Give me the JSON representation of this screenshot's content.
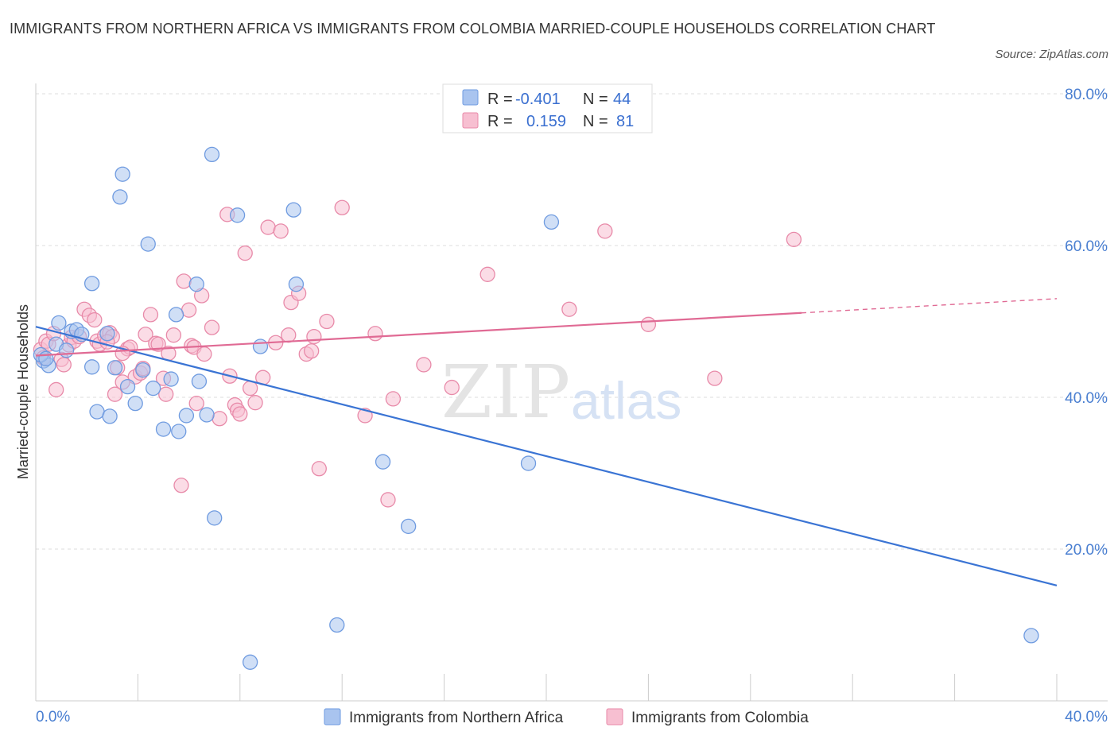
{
  "header": {
    "title": "IMMIGRANTS FROM NORTHERN AFRICA VS IMMIGRANTS FROM COLOMBIA MARRIED-COUPLE HOUSEHOLDS CORRELATION CHART",
    "source": "Source: ZipAtlas.com"
  },
  "chart_data": {
    "type": "scatter",
    "title": "IMMIGRANTS FROM NORTHERN AFRICA VS IMMIGRANTS FROM COLOMBIA MARRIED-COUPLE HOUSEHOLDS CORRELATION CHART",
    "ylabel": "Married-couple Households",
    "xlabel": "",
    "xlim": [
      0,
      40
    ],
    "ylim": [
      0,
      80
    ],
    "y_ticks": [
      {
        "value": 80,
        "label": "80.0%"
      },
      {
        "value": 60,
        "label": "60.0%"
      },
      {
        "value": 40,
        "label": "40.0%"
      },
      {
        "value": 20,
        "label": "20.0%"
      }
    ],
    "x_tick_labels": {
      "min": "0.0%",
      "max": "40.0%"
    },
    "grid": true,
    "legend_position": "top-center",
    "watermark": "ZIPatlas",
    "series": [
      {
        "name": "Immigrants from Northern Africa",
        "color": "#a9c4ef",
        "stroke": "#6f9be0",
        "line_color": "#3a74d4",
        "R": "-0.401",
        "N": "44",
        "trend": {
          "x0": 0,
          "y0": 49.3,
          "x1": 40,
          "y1": 15.2,
          "solid_until": 40
        },
        "points": [
          [
            0.3,
            44.8
          ],
          [
            0.5,
            44.2
          ],
          [
            0.2,
            45.6
          ],
          [
            0.4,
            45.1
          ],
          [
            0.8,
            47.0
          ],
          [
            0.9,
            49.8
          ],
          [
            1.2,
            46.2
          ],
          [
            1.4,
            48.7
          ],
          [
            1.6,
            48.9
          ],
          [
            1.8,
            48.3
          ],
          [
            2.2,
            55.0
          ],
          [
            2.2,
            44.0
          ],
          [
            2.4,
            38.1
          ],
          [
            2.9,
            37.5
          ],
          [
            2.8,
            48.4
          ],
          [
            3.1,
            43.9
          ],
          [
            3.3,
            66.4
          ],
          [
            3.4,
            69.4
          ],
          [
            3.6,
            41.4
          ],
          [
            3.9,
            39.2
          ],
          [
            4.2,
            43.6
          ],
          [
            4.4,
            60.2
          ],
          [
            4.6,
            41.2
          ],
          [
            5.0,
            35.8
          ],
          [
            5.3,
            42.4
          ],
          [
            5.6,
            35.5
          ],
          [
            5.5,
            50.9
          ],
          [
            5.9,
            37.6
          ],
          [
            6.3,
            54.9
          ],
          [
            6.4,
            42.1
          ],
          [
            6.7,
            37.7
          ],
          [
            6.9,
            72.0
          ],
          [
            7.0,
            24.1
          ],
          [
            7.9,
            64.0
          ],
          [
            8.4,
            5.1
          ],
          [
            8.8,
            46.7
          ],
          [
            10.1,
            64.7
          ],
          [
            10.2,
            54.9
          ],
          [
            11.8,
            10.0
          ],
          [
            13.6,
            31.5
          ],
          [
            14.6,
            23.0
          ],
          [
            19.3,
            31.3
          ],
          [
            20.2,
            63.1
          ],
          [
            39.0,
            8.6
          ]
        ]
      },
      {
        "name": "Immigrants from Colombia",
        "color": "#f7bfd1",
        "stroke": "#e88aa9",
        "line_color": "#e06a94",
        "R": "0.159",
        "N": "81",
        "trend": {
          "x0": 0,
          "y0": 45.5,
          "x1": 40,
          "y1": 53.0,
          "solid_until": 30
        },
        "points": [
          [
            0.2,
            46.3
          ],
          [
            0.3,
            45.2
          ],
          [
            0.4,
            47.4
          ],
          [
            0.5,
            47.0
          ],
          [
            0.7,
            48.4
          ],
          [
            0.8,
            41.0
          ],
          [
            1.0,
            45.0
          ],
          [
            1.1,
            44.3
          ],
          [
            1.3,
            46.9
          ],
          [
            1.4,
            47.9
          ],
          [
            1.5,
            47.4
          ],
          [
            1.7,
            48.0
          ],
          [
            1.9,
            51.6
          ],
          [
            2.1,
            50.8
          ],
          [
            2.3,
            50.2
          ],
          [
            2.4,
            47.4
          ],
          [
            2.5,
            47.0
          ],
          [
            2.7,
            48.1
          ],
          [
            2.9,
            48.5
          ],
          [
            3.0,
            48.0
          ],
          [
            3.1,
            40.4
          ],
          [
            3.2,
            43.9
          ],
          [
            3.4,
            42.0
          ],
          [
            3.6,
            46.4
          ],
          [
            3.7,
            46.6
          ],
          [
            3.9,
            42.7
          ],
          [
            4.1,
            43.2
          ],
          [
            4.2,
            43.8
          ],
          [
            4.3,
            48.3
          ],
          [
            4.5,
            50.9
          ],
          [
            4.7,
            47.1
          ],
          [
            4.8,
            47.0
          ],
          [
            5.0,
            42.5
          ],
          [
            5.1,
            40.4
          ],
          [
            5.2,
            45.8
          ],
          [
            5.4,
            48.2
          ],
          [
            5.7,
            28.4
          ],
          [
            5.8,
            55.3
          ],
          [
            6.0,
            51.5
          ],
          [
            6.1,
            46.8
          ],
          [
            6.2,
            46.6
          ],
          [
            6.3,
            39.2
          ],
          [
            6.5,
            53.4
          ],
          [
            6.6,
            45.7
          ],
          [
            6.9,
            49.2
          ],
          [
            7.2,
            37.2
          ],
          [
            7.5,
            64.1
          ],
          [
            7.6,
            42.8
          ],
          [
            7.8,
            39.0
          ],
          [
            7.9,
            38.3
          ],
          [
            8.0,
            37.8
          ],
          [
            8.2,
            59.0
          ],
          [
            8.4,
            41.2
          ],
          [
            8.6,
            39.3
          ],
          [
            8.9,
            42.6
          ],
          [
            9.1,
            62.4
          ],
          [
            9.4,
            47.2
          ],
          [
            9.6,
            61.9
          ],
          [
            9.9,
            48.2
          ],
          [
            10.0,
            52.5
          ],
          [
            10.3,
            53.7
          ],
          [
            10.6,
            45.7
          ],
          [
            10.8,
            46.1
          ],
          [
            10.9,
            48.0
          ],
          [
            11.1,
            30.6
          ],
          [
            11.4,
            50.0
          ],
          [
            12.0,
            65.0
          ],
          [
            12.9,
            37.6
          ],
          [
            13.3,
            48.4
          ],
          [
            13.8,
            26.5
          ],
          [
            14.0,
            39.8
          ],
          [
            15.2,
            44.3
          ],
          [
            16.3,
            41.3
          ],
          [
            17.7,
            56.2
          ],
          [
            20.9,
            51.6
          ],
          [
            22.3,
            61.9
          ],
          [
            24.0,
            49.6
          ],
          [
            26.6,
            42.5
          ],
          [
            29.7,
            60.8
          ],
          [
            3.4,
            45.8
          ],
          [
            2.8,
            47.3
          ]
        ]
      }
    ]
  }
}
